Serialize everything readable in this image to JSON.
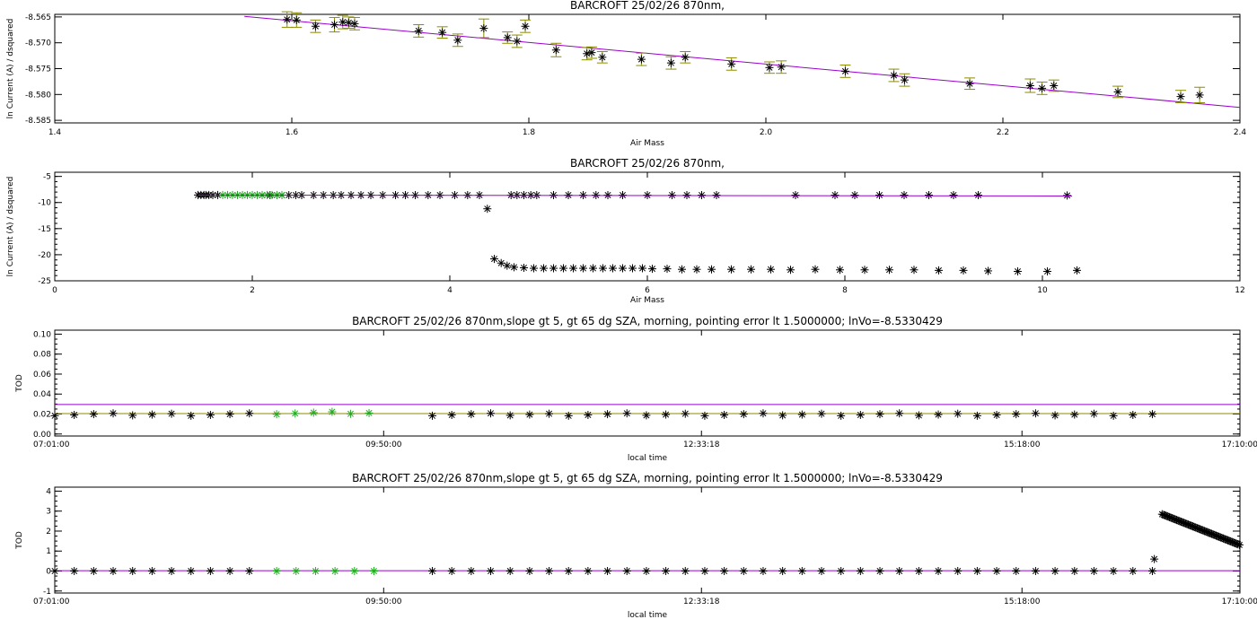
{
  "colors": {
    "fit": "#9900cc",
    "errbar": "#8c8c00",
    "marker_black": "#000000",
    "marker_green": "#22aa22",
    "axis": "#000000"
  },
  "chart_data": [
    {
      "type": "scatter",
      "title": "BARCROFT 25/02/26 870nm,",
      "xlabel": "Air Mass",
      "ylabel": "ln Current (A) / dsquared",
      "xlim": [
        1.4,
        2.4
      ],
      "ylim": [
        -8.5855,
        -8.5645
      ],
      "xticks": [
        "1.4",
        "1.6",
        "1.8",
        "2.0",
        "2.2",
        "2.4"
      ],
      "yticks": [
        "-8.585",
        "-8.580",
        "-8.575",
        "-8.570",
        "-8.565"
      ],
      "fit_line": {
        "x": [
          1.56,
          2.4
        ],
        "y": [
          -8.5649,
          -8.5825
        ]
      },
      "points": [
        [
          1.596,
          -8.5655,
          0.0015
        ],
        [
          1.604,
          -8.5656,
          0.0014
        ],
        [
          1.62,
          -8.5668,
          0.0012
        ],
        [
          1.636,
          -8.5665,
          0.0014
        ],
        [
          1.643,
          -8.566,
          0.0013
        ],
        [
          1.648,
          -8.5661,
          0.0011
        ],
        [
          1.653,
          -8.5663,
          0.0012
        ],
        [
          1.707,
          -8.5677,
          0.0012
        ],
        [
          1.727,
          -8.568,
          0.0011
        ],
        [
          1.74,
          -8.5695,
          0.0012
        ],
        [
          1.762,
          -8.5672,
          0.0018
        ],
        [
          1.782,
          -8.569,
          0.0011
        ],
        [
          1.79,
          -8.5697,
          0.0012
        ],
        [
          1.797,
          -8.5668,
          0.0012
        ],
        [
          1.823,
          -8.5714,
          0.0013
        ],
        [
          1.849,
          -8.5721,
          0.0012
        ],
        [
          1.853,
          -8.5719,
          0.0011
        ],
        [
          1.862,
          -8.5728,
          0.0011
        ],
        [
          1.895,
          -8.5732,
          0.0012
        ],
        [
          1.92,
          -8.5739,
          0.0012
        ],
        [
          1.932,
          -8.5728,
          0.0011
        ],
        [
          1.971,
          -8.5741,
          0.0012
        ],
        [
          2.003,
          -8.5748,
          0.0011
        ],
        [
          2.013,
          -8.5747,
          0.0012
        ],
        [
          2.067,
          -8.5755,
          0.0012
        ],
        [
          2.108,
          -8.5763,
          0.0012
        ],
        [
          2.117,
          -8.5772,
          0.0012
        ],
        [
          2.172,
          -8.5779,
          0.0011
        ],
        [
          2.223,
          -8.5783,
          0.0013
        ],
        [
          2.233,
          -8.5788,
          0.0012
        ],
        [
          2.243,
          -8.5783,
          0.0011
        ],
        [
          2.297,
          -8.5795,
          0.0011
        ],
        [
          2.35,
          -8.5804,
          0.0012
        ],
        [
          2.366,
          -8.5801,
          0.0015
        ]
      ]
    },
    {
      "type": "scatter",
      "title": "BARCROFT 25/02/26 870nm,",
      "xlabel": "Air Mass",
      "ylabel": "ln Current (A) / dsquared",
      "xlim": [
        0,
        12
      ],
      "ylim": [
        -25,
        -4.2
      ],
      "xticks": [
        "0",
        "2",
        "4",
        "6",
        "8",
        "10",
        "12"
      ],
      "yticks": [
        "-25",
        "-20",
        "-15",
        "-10",
        "-5"
      ],
      "fit_line": {
        "x": [
          1.45,
          10.3
        ],
        "y": [
          -8.57,
          -8.75
        ]
      },
      "points_black_upper": [
        [
          1.45,
          -8.56
        ],
        [
          1.48,
          -8.56
        ],
        [
          1.51,
          -8.56
        ],
        [
          1.53,
          -8.56
        ],
        [
          1.56,
          -8.56
        ],
        [
          1.6,
          -8.57
        ],
        [
          1.65,
          -8.56
        ],
        [
          2.1,
          -8.58
        ],
        [
          2.18,
          -8.58
        ],
        [
          2.25,
          -8.58
        ],
        [
          2.3,
          -8.58
        ],
        [
          2.37,
          -8.58
        ],
        [
          2.44,
          -8.58
        ],
        [
          2.5,
          -8.58
        ],
        [
          2.62,
          -8.58
        ],
        [
          2.72,
          -8.58
        ],
        [
          2.82,
          -8.58
        ],
        [
          2.9,
          -8.58
        ],
        [
          3.0,
          -8.58
        ],
        [
          3.1,
          -8.58
        ],
        [
          3.2,
          -8.58
        ],
        [
          3.32,
          -8.58
        ],
        [
          3.45,
          -8.58
        ],
        [
          3.55,
          -8.58
        ],
        [
          3.65,
          -8.58
        ],
        [
          3.78,
          -8.58
        ],
        [
          3.9,
          -8.58
        ],
        [
          4.05,
          -8.58
        ],
        [
          4.18,
          -8.58
        ],
        [
          4.3,
          -8.58
        ],
        [
          4.62,
          -8.58
        ],
        [
          4.68,
          -8.58
        ],
        [
          4.75,
          -8.58
        ],
        [
          4.82,
          -8.58
        ],
        [
          4.88,
          -8.58
        ],
        [
          5.05,
          -8.58
        ],
        [
          5.2,
          -8.58
        ],
        [
          5.35,
          -8.58
        ],
        [
          5.48,
          -8.58
        ],
        [
          5.6,
          -8.58
        ],
        [
          5.75,
          -8.58
        ],
        [
          6.0,
          -8.58
        ],
        [
          6.25,
          -8.58
        ],
        [
          6.4,
          -8.58
        ],
        [
          6.55,
          -8.58
        ],
        [
          6.7,
          -8.58
        ],
        [
          7.5,
          -8.58
        ],
        [
          7.9,
          -8.58
        ],
        [
          8.1,
          -8.58
        ],
        [
          8.35,
          -8.58
        ],
        [
          8.6,
          -8.58
        ],
        [
          8.85,
          -8.58
        ],
        [
          9.1,
          -8.58
        ],
        [
          9.35,
          -8.58
        ],
        [
          10.25,
          -8.65
        ]
      ],
      "points_green": [
        [
          1.7,
          -8.56
        ],
        [
          1.75,
          -8.56
        ],
        [
          1.8,
          -8.56
        ],
        [
          1.85,
          -8.56
        ],
        [
          1.9,
          -8.56
        ],
        [
          1.95,
          -8.56
        ],
        [
          2.0,
          -8.56
        ],
        [
          2.05,
          -8.56
        ],
        [
          2.1,
          -8.56
        ],
        [
          2.15,
          -8.56
        ],
        [
          2.2,
          -8.56
        ],
        [
          2.25,
          -8.56
        ],
        [
          2.3,
          -8.56
        ]
      ],
      "points_black_lower": [
        [
          4.38,
          -11.2
        ],
        [
          4.45,
          -20.8
        ],
        [
          4.52,
          -21.6
        ],
        [
          4.58,
          -22.1
        ],
        [
          4.65,
          -22.4
        ],
        [
          4.75,
          -22.5
        ],
        [
          4.85,
          -22.6
        ],
        [
          4.95,
          -22.6
        ],
        [
          5.05,
          -22.6
        ],
        [
          5.15,
          -22.6
        ],
        [
          5.25,
          -22.6
        ],
        [
          5.35,
          -22.6
        ],
        [
          5.45,
          -22.6
        ],
        [
          5.55,
          -22.6
        ],
        [
          5.65,
          -22.6
        ],
        [
          5.75,
          -22.6
        ],
        [
          5.85,
          -22.6
        ],
        [
          5.95,
          -22.6
        ],
        [
          6.05,
          -22.7
        ],
        [
          6.2,
          -22.7
        ],
        [
          6.35,
          -22.8
        ],
        [
          6.5,
          -22.8
        ],
        [
          6.65,
          -22.8
        ],
        [
          6.85,
          -22.8
        ],
        [
          7.05,
          -22.8
        ],
        [
          7.25,
          -22.8
        ],
        [
          7.45,
          -22.9
        ],
        [
          7.7,
          -22.8
        ],
        [
          7.95,
          -22.9
        ],
        [
          8.2,
          -22.9
        ],
        [
          8.45,
          -22.9
        ],
        [
          8.7,
          -22.9
        ],
        [
          8.95,
          -23.0
        ],
        [
          9.2,
          -23.0
        ],
        [
          9.45,
          -23.1
        ],
        [
          9.75,
          -23.2
        ],
        [
          10.05,
          -23.2
        ],
        [
          10.35,
          -23.0
        ]
      ]
    },
    {
      "type": "scatter",
      "title": "BARCROFT 25/02/26 870nm,slope gt 5, gt 65 dg SZA, morning, pointing error lt 1.5000000; lnVo=-8.5330429",
      "xlabel": "local time",
      "ylabel": "TOD",
      "xlim": [
        "07:01:00",
        "17:10:00"
      ],
      "ylim": [
        -0.002,
        0.104
      ],
      "xticks": [
        "07:01:00",
        "09:50:00",
        "12:33:18",
        "15:18:00",
        "17:10:00"
      ],
      "yticks": [
        "0.00",
        "0.02",
        "0.04",
        "0.06",
        "0.08",
        "0.10"
      ],
      "ref_line_purple": 0.0295,
      "ref_line_olive": 0.0205,
      "series": [
        {
          "marker": "black",
          "x_range": [
            "07:01:00",
            "08:45:00"
          ],
          "y": 0.0195
        },
        {
          "marker": "green",
          "x_range": [
            "08:55:00",
            "09:45:00"
          ],
          "y": 0.021
        },
        {
          "marker": "black",
          "x_range": [
            "10:15:00",
            "16:26:00"
          ],
          "y": 0.0195
        }
      ]
    },
    {
      "type": "scatter",
      "title": "BARCROFT 25/02/26 870nm,slope gt 5, gt 65 dg SZA, morning, pointing error lt 1.5000000; lnVo=-8.5330429",
      "xlabel": "local time",
      "ylabel": "TOD",
      "xlim": [
        "07:01:00",
        "17:10:00"
      ],
      "ylim": [
        -1.1,
        4.2
      ],
      "xticks": [
        "07:01:00",
        "09:50:00",
        "12:33:18",
        "15:18:00",
        "17:10:00"
      ],
      "yticks": [
        "-1",
        "0",
        "1",
        "2",
        "3",
        "4"
      ],
      "ref_line_purple": 0.02,
      "spike": {
        "x_start": "16:26:00",
        "x_end": "17:10:00",
        "y_start": 3.0,
        "y_end": 1.3
      }
    }
  ]
}
